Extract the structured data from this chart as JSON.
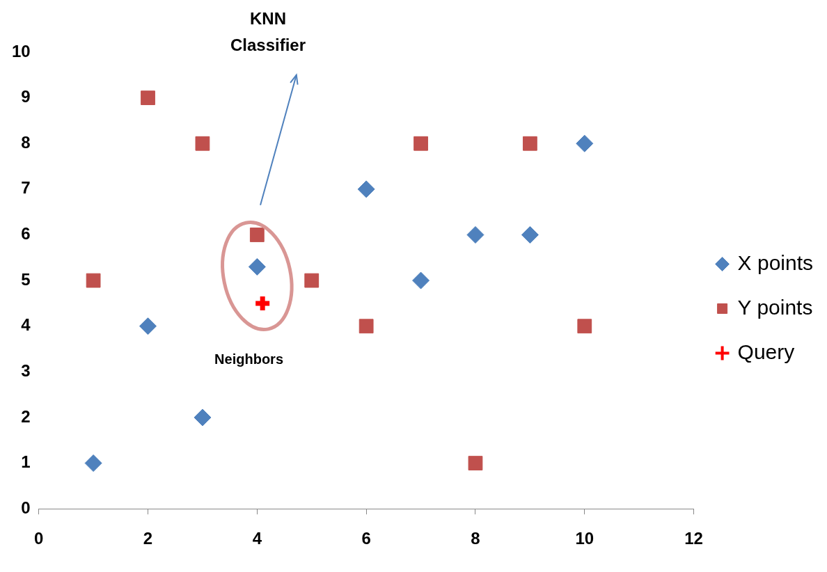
{
  "chart_data": {
    "type": "scatter",
    "xlim": [
      0,
      12
    ],
    "xticks": [
      0,
      2,
      4,
      6,
      8,
      10,
      12
    ],
    "ylim": [
      0,
      10
    ],
    "yticks": [
      0,
      1,
      2,
      3,
      4,
      5,
      6,
      7,
      8,
      9,
      10
    ],
    "grid": false,
    "legend": "right",
    "series": [
      {
        "name": "X points",
        "color": "#4f81bd",
        "marker": "diamond",
        "x": [
          1,
          2,
          3,
          4,
          6,
          7,
          8,
          9,
          10
        ],
        "values": [
          1,
          4,
          2,
          5.3,
          7,
          5,
          6,
          6,
          8
        ]
      },
      {
        "name": "Y points",
        "color": "#c0504d",
        "marker": "square",
        "x": [
          1,
          2,
          3,
          4,
          5,
          6,
          7,
          8,
          9,
          10
        ],
        "values": [
          5,
          9,
          8,
          6,
          5,
          4,
          8,
          1,
          8,
          4
        ]
      },
      {
        "name": "Query",
        "color": "#ff0000",
        "marker": "cross",
        "x": [
          4.1
        ],
        "values": [
          4.5
        ]
      }
    ],
    "annotations": [
      "KNN Classifier",
      "Neighbors"
    ]
  }
}
